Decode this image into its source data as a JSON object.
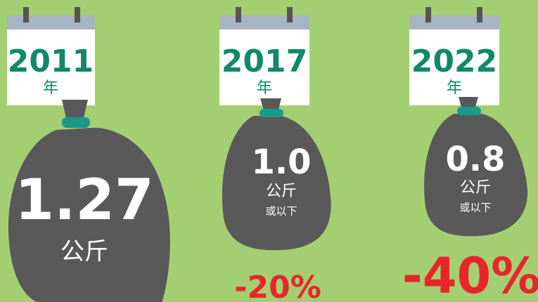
{
  "items": [
    {
      "year": "2011",
      "year_unit": "年",
      "amount": "1.27",
      "unit": "公斤"
    },
    {
      "year": "2017",
      "year_unit": "年",
      "amount": "1.0",
      "unit": "公斤",
      "note": "或以下",
      "change": "-20%"
    },
    {
      "year": "2022",
      "year_unit": "年",
      "amount": "0.8",
      "unit": "公斤",
      "note": "或以下",
      "change": "-40%"
    }
  ]
}
